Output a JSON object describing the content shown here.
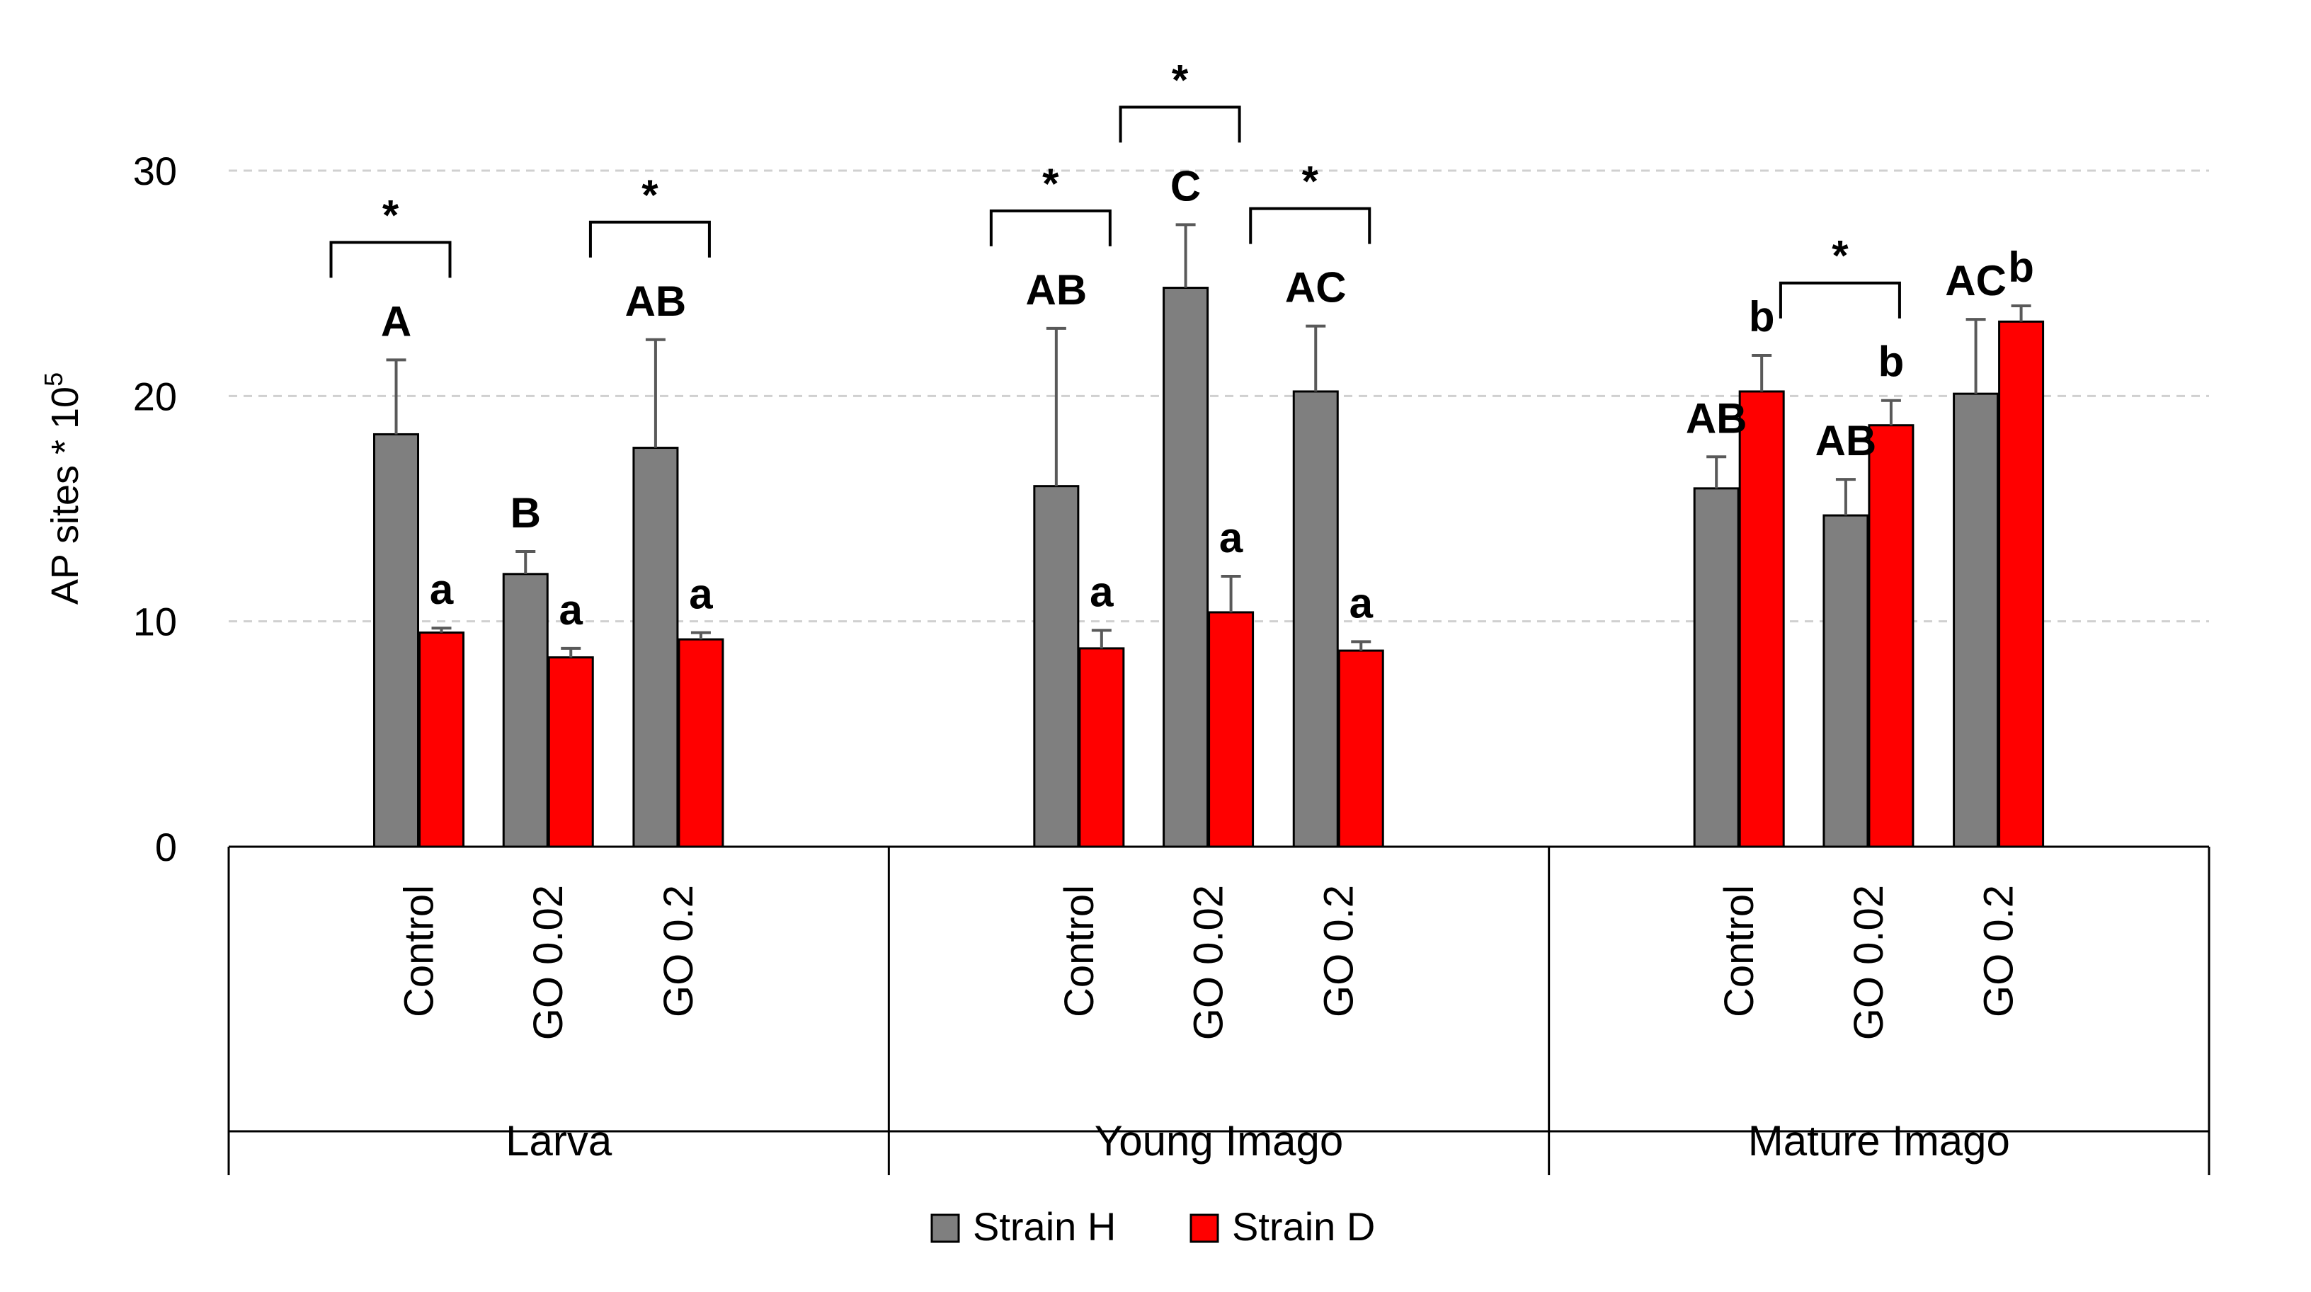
{
  "chart_data": {
    "type": "bar",
    "title": "",
    "ylabel": "AP sites * 10",
    "ylabel_superscript": "5",
    "xlabel": "",
    "ylim": [
      0,
      30
    ],
    "yticks": [
      "0",
      "10",
      "20",
      "30"
    ],
    "grid": true,
    "legend_position": "bottom",
    "groups": [
      {
        "name": "Larva",
        "categories": [
          "Control",
          "GO 0.02",
          "GO 0.2"
        ],
        "series": [
          {
            "name": "Strain H",
            "values": [
              18.3,
              12.1,
              17.7
            ],
            "errors": [
              3.3,
              1.0,
              4.8
            ],
            "letters": [
              "A",
              "B",
              "AB"
            ]
          },
          {
            "name": "Strain D",
            "values": [
              9.5,
              8.4,
              9.2
            ],
            "errors": [
              0.2,
              0.4,
              0.3
            ],
            "letters": [
              "a",
              "a",
              "a"
            ]
          }
        ],
        "significance": [
          {
            "category_index": 0,
            "label": "*"
          },
          {
            "category_index": 2,
            "label": "*"
          }
        ]
      },
      {
        "name": "Young Imago",
        "categories": [
          "Control",
          "GO 0.02",
          "GO 0.2"
        ],
        "series": [
          {
            "name": "Strain H",
            "values": [
              16.0,
              24.8,
              20.2
            ],
            "errors": [
              7.0,
              2.8,
              2.9
            ],
            "letters": [
              "AB",
              "C",
              "AC"
            ]
          },
          {
            "name": "Strain D",
            "values": [
              8.8,
              10.4,
              8.7
            ],
            "errors": [
              0.8,
              1.6,
              0.4
            ],
            "letters": [
              "a",
              "a",
              "a"
            ]
          }
        ],
        "significance": [
          {
            "category_index": 0,
            "label": "*"
          },
          {
            "category_index": 1,
            "label": "*"
          },
          {
            "category_index": 2,
            "label": "*"
          }
        ]
      },
      {
        "name": "Mature Imago",
        "categories": [
          "Control",
          "GO 0.02",
          "GO 0.2"
        ],
        "series": [
          {
            "name": "Strain H",
            "values": [
              15.9,
              14.7,
              20.1
            ],
            "errors": [
              1.4,
              1.6,
              3.3
            ],
            "letters": [
              "AB",
              "AB",
              "AC"
            ]
          },
          {
            "name": "Strain D",
            "values": [
              20.2,
              18.7,
              23.3
            ],
            "errors": [
              1.6,
              1.1,
              0.7
            ],
            "letters": [
              "b",
              "b",
              "b"
            ]
          }
        ],
        "significance": [
          {
            "category_index": 1,
            "label": "*"
          }
        ]
      }
    ],
    "legend": [
      {
        "name": "Strain H",
        "color": "#7f7f7f"
      },
      {
        "name": "Strain D",
        "color": "#ff0000"
      }
    ]
  }
}
